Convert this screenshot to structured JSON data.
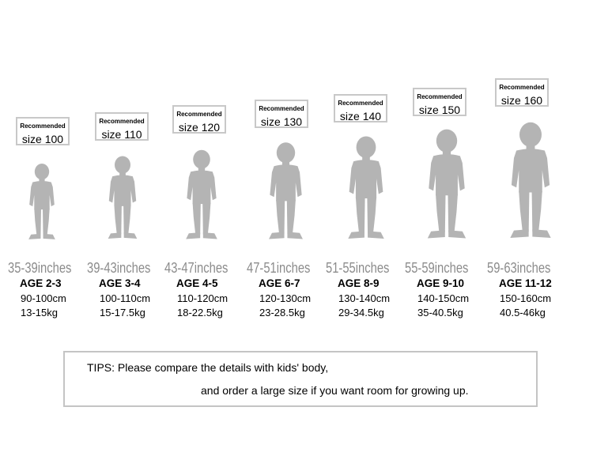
{
  "sizes": [
    {
      "label": "Recommended",
      "size": "size 100",
      "inches": "35-39inches",
      "age": "AGE 2-3",
      "height": "90-100cm",
      "weight": "13-15kg"
    },
    {
      "label": "Recommended",
      "size": "size 110",
      "inches": "39-43inches",
      "age": "AGE 3-4",
      "height": "100-110cm",
      "weight": "15-17.5kg"
    },
    {
      "label": "Recommended",
      "size": "size 120",
      "inches": "43-47inches",
      "age": "AGE 4-5",
      "height": "110-120cm",
      "weight": "18-22.5kg"
    },
    {
      "label": "Recommended",
      "size": "size 130",
      "inches": "47-51inches",
      "age": "AGE 6-7",
      "height": "120-130cm",
      "weight": "23-28.5kg"
    },
    {
      "label": "Recommended",
      "size": "size 140",
      "inches": "51-55inches",
      "age": "AGE 8-9",
      "height": "130-140cm",
      "weight": "29-34.5kg"
    },
    {
      "label": "Recommended",
      "size": "size 150",
      "inches": "55-59inches",
      "age": "AGE 9-10",
      "height": "140-150cm",
      "weight": "35-40.5kg"
    },
    {
      "label": "Recommended",
      "size": "size 160",
      "inches": "59-63inches",
      "age": "AGE 11-12",
      "height": "150-160cm",
      "weight": "40.5-46kg"
    }
  ],
  "tips": {
    "line1": "TIPS: Please compare the details with kids' body,",
    "line2": "and order a large size if you want room for growing up."
  },
  "colors": {
    "silhouette": "#b4b4b4",
    "box_border": "#c8c8c8",
    "inches_text": "#8c8c8c"
  }
}
